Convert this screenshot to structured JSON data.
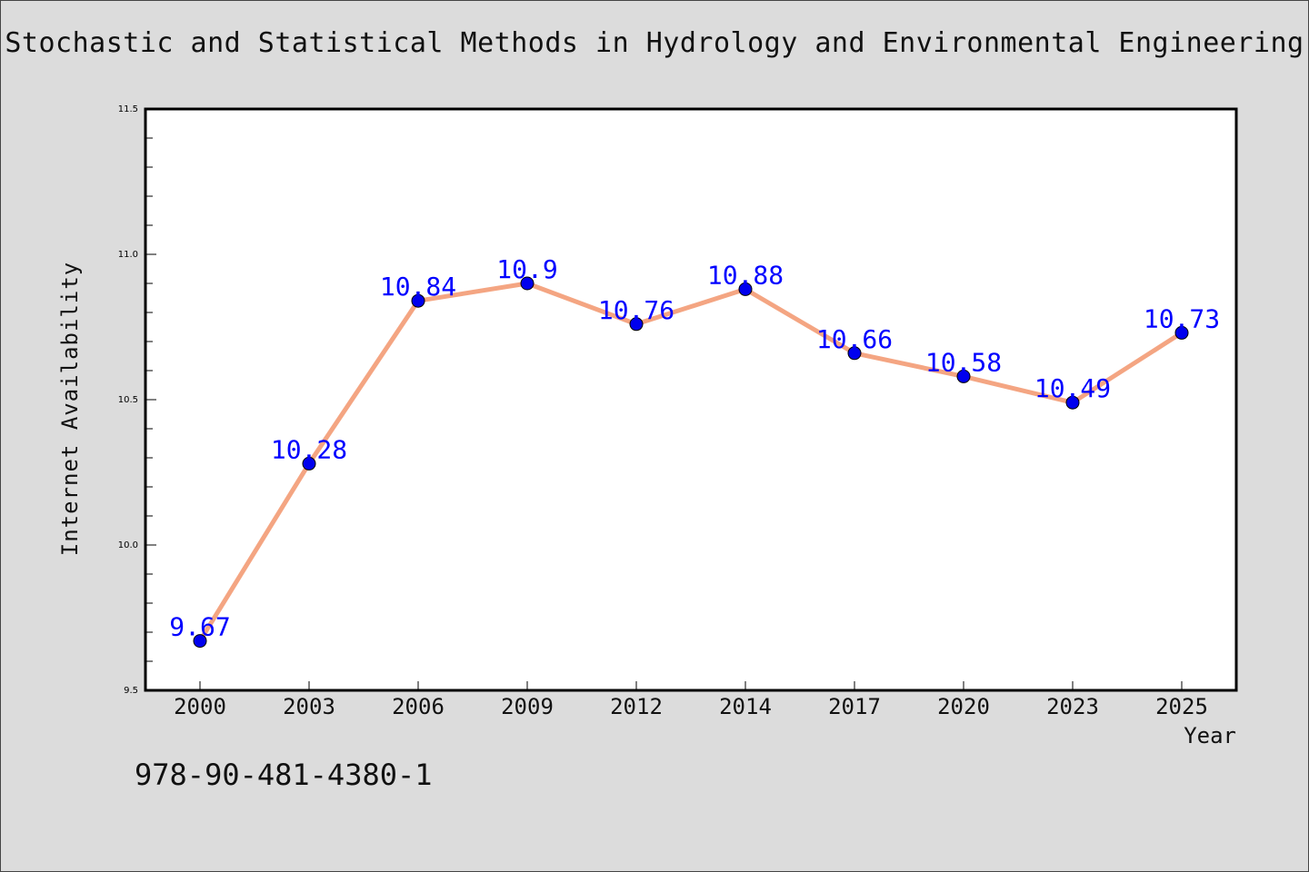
{
  "chart_data": {
    "type": "line",
    "title": "Stochastic and Statistical Methods in Hydrology and Environmental Engineering",
    "xlabel": "Year",
    "ylabel": "Internet Availability",
    "categories": [
      "2000",
      "2003",
      "2006",
      "2009",
      "2012",
      "2014",
      "2017",
      "2020",
      "2023",
      "2025"
    ],
    "series": [
      {
        "values": [
          9.67,
          10.28,
          10.84,
          10.9,
          10.76,
          10.88,
          10.66,
          10.58,
          10.49,
          10.73
        ],
        "data_labels": [
          "9.67",
          "10.28",
          "10.84",
          "10.9",
          "10.76",
          "10.88",
          "10.66",
          "10.58",
          "10.49",
          "10.73"
        ]
      }
    ],
    "ylim": [
      9.5,
      11.5
    ],
    "yticks": [
      "9.5",
      "10.0",
      "10.5",
      "11.0",
      "11.5"
    ],
    "grid": false,
    "colors": {
      "line": "#f4a582",
      "marker": "#0000ee",
      "data_label": "#0000ff",
      "background": "#dcdcdc",
      "plot_background": "#ffffff"
    }
  },
  "caption": "978-90-481-4380-1"
}
